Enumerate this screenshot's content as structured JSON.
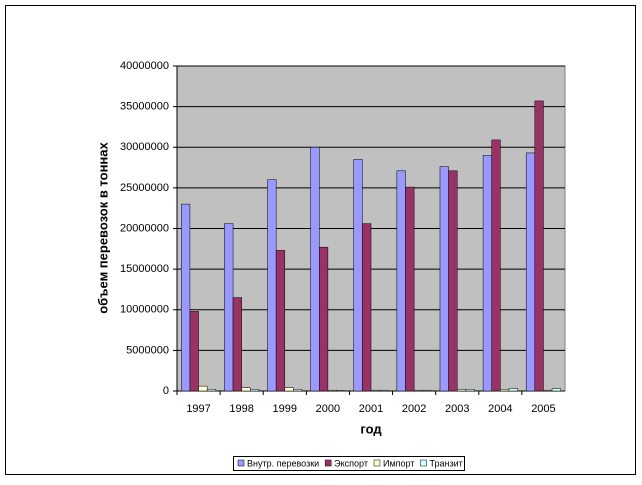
{
  "chart_data": {
    "type": "bar",
    "x_label": "год",
    "y_label": "объем перевозок в тоннах",
    "categories": [
      "1997",
      "1998",
      "1999",
      "2000",
      "2001",
      "2002",
      "2003",
      "2004",
      "2005"
    ],
    "series": [
      {
        "name": "Внутр. перевозки",
        "color": "#9999ff",
        "values": [
          23000000,
          20600000,
          26000000,
          30000000,
          28500000,
          27100000,
          27600000,
          29000000,
          29300000
        ]
      },
      {
        "name": "Экспорт",
        "color": "#993366",
        "values": [
          9800000,
          11500000,
          17300000,
          17700000,
          20600000,
          25100000,
          27100000,
          30900000,
          35700000
        ]
      },
      {
        "name": "Импорт",
        "color": "#ffffcc",
        "values": [
          600000,
          400000,
          400000,
          100000,
          100000,
          100000,
          200000,
          200000,
          100000
        ]
      },
      {
        "name": "Транзит",
        "color": "#ccffff",
        "values": [
          200000,
          200000,
          200000,
          50000,
          100000,
          100000,
          200000,
          300000,
          300000
        ]
      }
    ],
    "ylim": [
      0,
      40000000
    ],
    "yticks": [
      0,
      5000000,
      10000000,
      15000000,
      20000000,
      25000000,
      30000000,
      35000000,
      40000000
    ],
    "grid": true,
    "legend": "bottom"
  }
}
